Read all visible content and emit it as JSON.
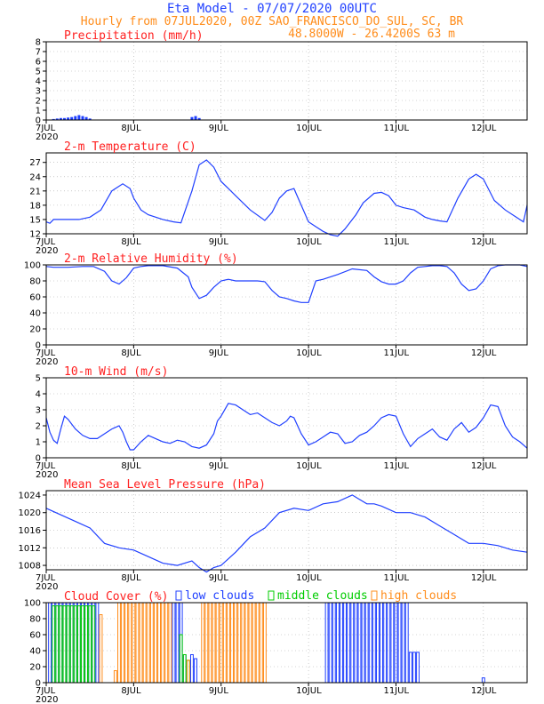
{
  "header": {
    "title": "Eta Model - 07/07/2020 00UTC",
    "line2": "Hourly from 07JUL2020, 00Z  SAO_FRANCISCO_DO_SUL, SC, BR",
    "line3": "48.8000W - 26.4200S    63  m"
  },
  "colors": {
    "title": "#1f3fff",
    "orange": "#ff8c1a",
    "red": "#ff2020",
    "series": "#1f3fff",
    "green": "#00cc00",
    "grid": "#aaaaaa"
  },
  "x_axis": {
    "ticks": [
      {
        "label": "7JUL",
        "sub": "2020",
        "hour": 0
      },
      {
        "label": "8JUL",
        "sub": "",
        "hour": 24
      },
      {
        "label": "9JUL",
        "sub": "",
        "hour": 48
      },
      {
        "label": "10JUL",
        "sub": "",
        "hour": 72
      },
      {
        "label": "11JUL",
        "sub": "",
        "hour": 96
      },
      {
        "label": "12JUL",
        "sub": "",
        "hour": 120
      }
    ],
    "range_hours": [
      0,
      132
    ]
  },
  "chart_data": [
    {
      "id": "precip",
      "type": "bar",
      "title": "Precipitation (mm/h)",
      "ylim": [
        0,
        8
      ],
      "yticks": [
        0,
        1,
        2,
        3,
        4,
        5,
        6,
        7,
        8
      ],
      "x": [
        2,
        3,
        4,
        5,
        6,
        7,
        8,
        9,
        10,
        11,
        12,
        40,
        41,
        42
      ],
      "values": [
        0.1,
        0.15,
        0.2,
        0.2,
        0.25,
        0.3,
        0.4,
        0.5,
        0.4,
        0.3,
        0.15,
        0.3,
        0.4,
        0.2
      ]
    },
    {
      "id": "temp",
      "type": "line",
      "title": "2-m Temperature (C)",
      "ylim": [
        12,
        29
      ],
      "yticks": [
        12,
        15,
        18,
        21,
        24,
        27
      ],
      "x": [
        0,
        1,
        2,
        5,
        9,
        12,
        15,
        18,
        21,
        23,
        24,
        26,
        28,
        32,
        35,
        37,
        40,
        42,
        44,
        46,
        48,
        50,
        52,
        56,
        60,
        62,
        64,
        66,
        68,
        70,
        72,
        74,
        76,
        78,
        80,
        82,
        85,
        87,
        90,
        92,
        94,
        96,
        98,
        101,
        104,
        106,
        108,
        110,
        113,
        116,
        118,
        120,
        123,
        126,
        129,
        131,
        132
      ],
      "values": [
        14.5,
        14.2,
        15,
        15,
        15,
        15.5,
        17,
        21,
        22.5,
        21.5,
        19.5,
        17,
        16,
        15,
        14.5,
        14.3,
        21,
        26.5,
        27.5,
        26,
        23,
        21.5,
        20,
        17,
        14.8,
        16.5,
        19.5,
        21,
        21.5,
        18,
        14.5,
        13.5,
        12.5,
        11.8,
        11.5,
        13,
        16,
        18.5,
        20.5,
        20.7,
        20,
        18,
        17.5,
        17,
        15.5,
        15,
        14.7,
        14.5,
        19.5,
        23.5,
        24.5,
        23.5,
        19,
        17,
        15.5,
        14.5,
        18
      ]
    },
    {
      "id": "rh",
      "type": "line",
      "title": "2-m Relative Humidity (%)",
      "ylim": [
        0,
        100
      ],
      "yticks": [
        0,
        20,
        40,
        60,
        80,
        100
      ],
      "x": [
        0,
        2,
        6,
        10,
        13,
        16,
        18,
        20,
        22,
        24,
        26,
        28,
        32,
        36,
        39,
        40,
        42,
        44,
        46,
        48,
        50,
        52,
        56,
        58,
        60,
        62,
        64,
        66,
        68,
        70,
        72,
        74,
        76,
        80,
        84,
        88,
        90,
        92,
        94,
        96,
        98,
        100,
        102,
        104,
        106,
        108,
        110,
        112,
        114,
        116,
        118,
        120,
        122,
        124,
        126,
        128,
        130,
        132
      ],
      "values": [
        98,
        97,
        97,
        98,
        98,
        92,
        80,
        76,
        84,
        96,
        98,
        99,
        99,
        96,
        85,
        72,
        58,
        62,
        72,
        80,
        82,
        80,
        80,
        80,
        79,
        68,
        60,
        58,
        55,
        53,
        53,
        80,
        82,
        88,
        95,
        93,
        85,
        79,
        76,
        76,
        80,
        90,
        97,
        98,
        99,
        99,
        98,
        90,
        76,
        68,
        70,
        80,
        95,
        99,
        100,
        100,
        100,
        98
      ]
    },
    {
      "id": "wind",
      "type": "line",
      "title": "10-m Wind (m/s)",
      "ylim": [
        0,
        5
      ],
      "yticks": [
        0,
        1,
        2,
        3,
        4,
        5
      ],
      "x": [
        0,
        1,
        2,
        3,
        4,
        5,
        6,
        8,
        10,
        12,
        14,
        16,
        18,
        20,
        21,
        22,
        23,
        24,
        26,
        28,
        30,
        32,
        34,
        36,
        38,
        40,
        42,
        44,
        46,
        47,
        48,
        50,
        52,
        54,
        56,
        58,
        60,
        62,
        64,
        66,
        67,
        68,
        70,
        72,
        74,
        76,
        78,
        80,
        82,
        84,
        86,
        88,
        90,
        92,
        94,
        96,
        98,
        100,
        102,
        104,
        106,
        108,
        110,
        112,
        114,
        116,
        118,
        120,
        122,
        124,
        126,
        128,
        130,
        132
      ],
      "values": [
        2.5,
        1.6,
        1.1,
        0.9,
        1.8,
        2.6,
        2.4,
        1.8,
        1.4,
        1.2,
        1.2,
        1.5,
        1.8,
        2.0,
        1.6,
        1.0,
        0.5,
        0.5,
        1.0,
        1.4,
        1.2,
        1.0,
        0.9,
        1.1,
        1.0,
        0.7,
        0.6,
        0.8,
        1.5,
        2.3,
        2.6,
        3.4,
        3.3,
        3.0,
        2.7,
        2.8,
        2.5,
        2.2,
        2.0,
        2.3,
        2.6,
        2.5,
        1.5,
        0.8,
        1.0,
        1.3,
        1.6,
        1.5,
        0.9,
        1.0,
        1.4,
        1.6,
        2.0,
        2.5,
        2.7,
        2.6,
        1.5,
        0.7,
        1.2,
        1.5,
        1.8,
        1.3,
        1.1,
        1.8,
        2.2,
        1.6,
        1.9,
        2.5,
        3.3,
        3.2,
        2.0,
        1.3,
        1.0,
        0.6
      ]
    },
    {
      "id": "mslp",
      "type": "line",
      "title": "Mean Sea Level Pressure (hPa)",
      "ylim": [
        1007,
        1025
      ],
      "yticks": [
        1008,
        1012,
        1016,
        1020,
        1024
      ],
      "x": [
        0,
        4,
        8,
        12,
        16,
        20,
        24,
        28,
        32,
        36,
        40,
        42,
        44,
        46,
        48,
        52,
        56,
        60,
        64,
        68,
        72,
        76,
        80,
        84,
        86,
        88,
        90,
        92,
        96,
        100,
        104,
        108,
        112,
        116,
        120,
        124,
        128,
        132
      ],
      "values": [
        1021,
        1019.5,
        1018,
        1016.5,
        1013,
        1012,
        1011.5,
        1010,
        1008.5,
        1008,
        1009,
        1007.5,
        1006.5,
        1007.5,
        1008,
        1011,
        1014.5,
        1016.5,
        1020,
        1021,
        1020.5,
        1022,
        1022.5,
        1024,
        1023,
        1022,
        1022,
        1021.5,
        1020,
        1020,
        1019,
        1017,
        1015,
        1013,
        1013,
        1012.5,
        1011.5,
        1011
      ]
    },
    {
      "id": "cloud",
      "type": "bar",
      "title": "Cloud Cover (%)",
      "legend": [
        "low clouds",
        "middle clouds",
        "high clouds"
      ],
      "ylim": [
        0,
        100
      ],
      "yticks": [
        0,
        20,
        40,
        60,
        80,
        100
      ],
      "series": [
        {
          "name": "low clouds",
          "color": "#1f3fff",
          "x": [
            1,
            2,
            3,
            4,
            5,
            6,
            7,
            8,
            9,
            10,
            11,
            12,
            13,
            14,
            35,
            36,
            37,
            38,
            40,
            41,
            77,
            78,
            79,
            80,
            81,
            82,
            83,
            84,
            85,
            86,
            87,
            88,
            89,
            90,
            91,
            92,
            93,
            94,
            95,
            96,
            97,
            98,
            99,
            100,
            101,
            102,
            120
          ],
          "values": [
            100,
            100,
            100,
            100,
            100,
            100,
            100,
            100,
            100,
            100,
            100,
            100,
            100,
            100,
            100,
            100,
            100,
            35,
            35,
            30,
            100,
            100,
            100,
            100,
            100,
            100,
            100,
            100,
            100,
            100,
            100,
            100,
            100,
            100,
            100,
            100,
            100,
            100,
            100,
            100,
            100,
            100,
            100,
            38,
            38,
            38,
            6
          ]
        },
        {
          "name": "middle clouds",
          "color": "#00cc00",
          "x": [
            2,
            3,
            4,
            5,
            6,
            7,
            8,
            9,
            10,
            11,
            12,
            13,
            37,
            38,
            39
          ],
          "values": [
            96,
            96,
            96,
            96,
            96,
            96,
            96,
            96,
            96,
            96,
            96,
            96,
            60,
            35,
            28
          ]
        },
        {
          "name": "high clouds",
          "color": "#ff8c1a",
          "x": [
            15,
            19,
            20,
            21,
            22,
            23,
            24,
            25,
            26,
            27,
            28,
            29,
            30,
            31,
            32,
            33,
            34,
            39,
            43,
            44,
            45,
            46,
            47,
            48,
            49,
            50,
            51,
            52,
            53,
            54,
            55,
            56,
            57,
            58,
            59,
            60
          ],
          "values": [
            85,
            15,
            100,
            100,
            100,
            100,
            100,
            100,
            100,
            100,
            100,
            100,
            100,
            100,
            100,
            100,
            100,
            28,
            100,
            100,
            100,
            100,
            100,
            100,
            100,
            100,
            100,
            100,
            100,
            100,
            100,
            100,
            100,
            100,
            100,
            100
          ]
        }
      ]
    }
  ]
}
